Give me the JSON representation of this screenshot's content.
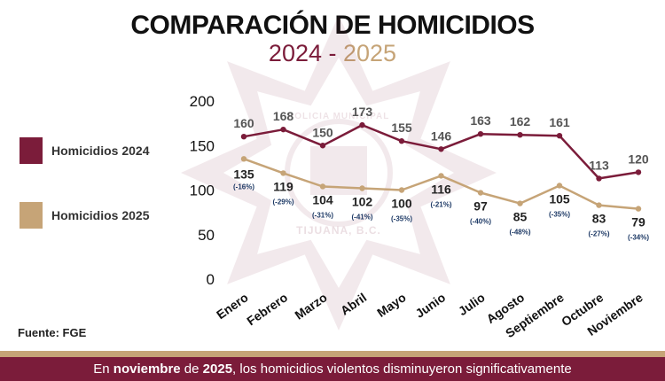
{
  "title": "COMPARACIÓN DE HOMICIDIOS",
  "subtitle": {
    "year1": "2024",
    "separator": " - ",
    "year2": "2025"
  },
  "legend": [
    {
      "label": "Homicidios 2024",
      "color": "#7b1c3a"
    },
    {
      "label": "Homicidios 2025",
      "color": "#c6a477"
    }
  ],
  "source": "Fuente: FGE",
  "footer": {
    "pre": "En ",
    "bold1": "noviembre",
    "mid": " de ",
    "bold2": "2025",
    "post": ", los homicidios violentos disminuyeron significativamente"
  },
  "watermark": {
    "line1": "POLICIA MUNICIPAL",
    "line2": "TIJUANA, B.C."
  },
  "chart_data": {
    "type": "line",
    "title": "COMPARACIÓN DE HOMICIDIOS",
    "categories": [
      "Enero",
      "Febrero",
      "Marzo",
      "Abril",
      "Mayo",
      "Junio",
      "Julio",
      "Agosto",
      "Septiembre",
      "Octubre",
      "Noviembre"
    ],
    "series": [
      {
        "name": "Homicidios 2024",
        "color": "#7b1c3a",
        "values": [
          160,
          168,
          150,
          173,
          155,
          146,
          163,
          162,
          161,
          113,
          120
        ]
      },
      {
        "name": "Homicidios 2025",
        "color": "#c6a477",
        "values": [
          135,
          119,
          104,
          102,
          100,
          116,
          97,
          85,
          105,
          83,
          79
        ],
        "changes": [
          "(-16%)",
          "(-29%)",
          "(-31%)",
          "(-41%)",
          "(-35%)",
          "(-21%)",
          "(-40%)",
          "(-48%)",
          "(-35%)",
          "(-27%)",
          "(-34%)"
        ]
      }
    ],
    "yticks": [
      0,
      50,
      100,
      150,
      200
    ],
    "ylim": [
      0,
      200
    ],
    "grid": false,
    "legend_position": "left"
  }
}
